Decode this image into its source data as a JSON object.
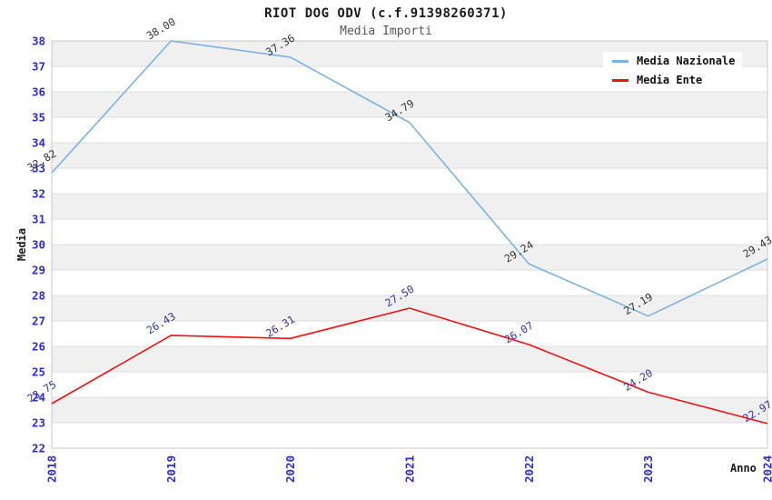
{
  "chart_data": {
    "type": "line",
    "title": "RIOT DOG ODV (c.f.91398260371)",
    "subtitle": "Media Importi",
    "xlabel": "Anno",
    "ylabel": "Media",
    "categories": [
      "2018",
      "2019",
      "2020",
      "2021",
      "2022",
      "2023",
      "2024"
    ],
    "series": [
      {
        "name": "Media Nazionale",
        "color": "#7cb2e0",
        "label_color": "#333333",
        "values": [
          32.82,
          38.0,
          37.36,
          34.79,
          29.24,
          27.19,
          29.43
        ]
      },
      {
        "name": "Media Ente",
        "color": "#ee1111",
        "label_color": "#333399",
        "values": [
          23.75,
          26.43,
          26.31,
          27.5,
          26.07,
          24.2,
          22.97
        ]
      }
    ],
    "ylim": [
      22,
      38
    ],
    "y_ticks": [
      22,
      23,
      24,
      25,
      26,
      27,
      28,
      29,
      30,
      31,
      32,
      33,
      34,
      35,
      36,
      37,
      38
    ],
    "grid": "horizontal-stripes",
    "legend_position": "top-right",
    "tick_color": "#2b2bd0",
    "stripe_color": "#f0f0f0",
    "gridline_color": "#dedede",
    "border_color": "#c9c9c9"
  }
}
